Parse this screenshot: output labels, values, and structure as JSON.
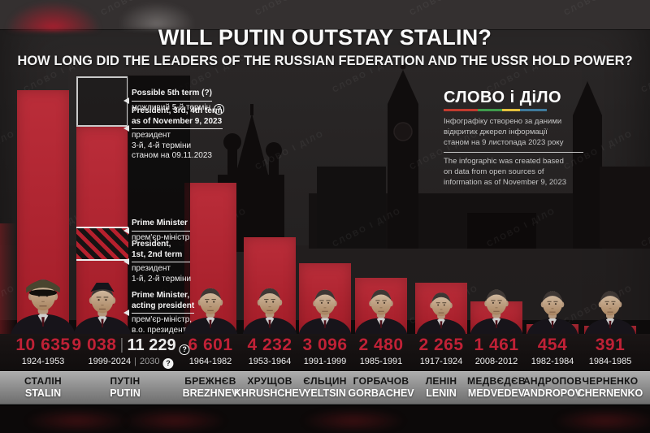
{
  "title": "WILL PUTIN OUTSTAY STALIN?",
  "subtitle": "HOW LONG DID THE LEADERS OF THE RUSSIAN FEDERATION AND THE USSR HOLD POWER?",
  "watermark": "СЛОВО І ДІЛО",
  "logo": {
    "text": "СЛОВО і ДіЛО",
    "underline_colors": [
      "#c23b2e",
      "#3f9b4c",
      "#e3c13e",
      "#3f7a9b"
    ]
  },
  "source_note": {
    "uk_lines": [
      "Інфографіку створено за даними",
      "відкритих джерел інформації",
      "станом на 9 листопада 2023 року"
    ],
    "en_lines": [
      "The infographic was created based",
      "on data from open sources of",
      "information  as of November 9, 2023"
    ]
  },
  "annotations": [
    {
      "en_lines": [
        "Possible 5th term (?)"
      ],
      "uk_lines": [
        "можливий 5-й термін"
      ],
      "badge": "?"
    },
    {
      "en_lines": [
        "President, 3rd, 4th term",
        "as of November 9, 2023"
      ],
      "uk_lines": [
        "президент",
        "3-й, 4-й терміни",
        "станом на 09.11.2023"
      ]
    },
    {
      "en_lines": [
        "Prime Minister"
      ],
      "uk_lines": [
        "прем'єр-міністр"
      ]
    },
    {
      "en_lines": [
        "President,",
        "1st, 2nd term"
      ],
      "uk_lines": [
        "президент",
        "1-й, 2-й терміни"
      ]
    },
    {
      "en_lines": [
        "Prime Minister,",
        "acting president"
      ],
      "uk_lines": [
        "прем'єр-міністр,",
        "в.о. президента"
      ]
    }
  ],
  "badge_glyph": "?",
  "chart_data": {
    "type": "bar",
    "title": "WILL PUTIN OUTSTAY STALIN?",
    "unit": "days in power",
    "ylim": [
      0,
      11229
    ],
    "bar_color": "#b6202d",
    "legend_position": "none",
    "grid": false,
    "leaders": [
      {
        "name_uk": "СТАЛІН",
        "name_en": "STALIN",
        "days": 10635,
        "days_label": "10 635",
        "years": "1924-1953"
      },
      {
        "name_uk": "ПУТІН",
        "name_en": "PUTIN",
        "days": 9038,
        "days_label": "9 038",
        "years": "1999-2024",
        "projected_days": 11229,
        "projected_days_label": "11 229",
        "projected_year": "2030"
      },
      {
        "name_uk": "БРЕЖНЄВ",
        "name_en": "BREZHNEV",
        "days": 6601,
        "days_label": "6 601",
        "years": "1964-1982"
      },
      {
        "name_uk": "ХРУЩОВ",
        "name_en": "KHRUSHCHEV",
        "days": 4232,
        "days_label": "4 232",
        "years": "1953-1964"
      },
      {
        "name_uk": "ЄЛЬЦИН",
        "name_en": "YELTSIN",
        "days": 3096,
        "days_label": "3 096",
        "years": "1991-1999"
      },
      {
        "name_uk": "ГОРБАЧОВ",
        "name_en": "GORBACHEV",
        "days": 2480,
        "days_label": "2 480",
        "years": "1985-1991"
      },
      {
        "name_uk": "ЛЕНІН",
        "name_en": "LENIN",
        "days": 2265,
        "days_label": "2 265",
        "years": "1917-1924"
      },
      {
        "name_uk": "МЕДВЄДЄВ",
        "name_en": "MEDVEDEV",
        "days": 1461,
        "days_label": "1 461",
        "years": "2008-2012"
      },
      {
        "name_uk": "АНДРОПОВ",
        "name_en": "ANDROPOV",
        "days": 454,
        "days_label": "454",
        "years": "1982-1984"
      },
      {
        "name_uk": "ЧЕРНЕНКО",
        "name_en": "CHERNENKO",
        "days": 391,
        "days_label": "391",
        "years": "1984-1985"
      }
    ]
  }
}
